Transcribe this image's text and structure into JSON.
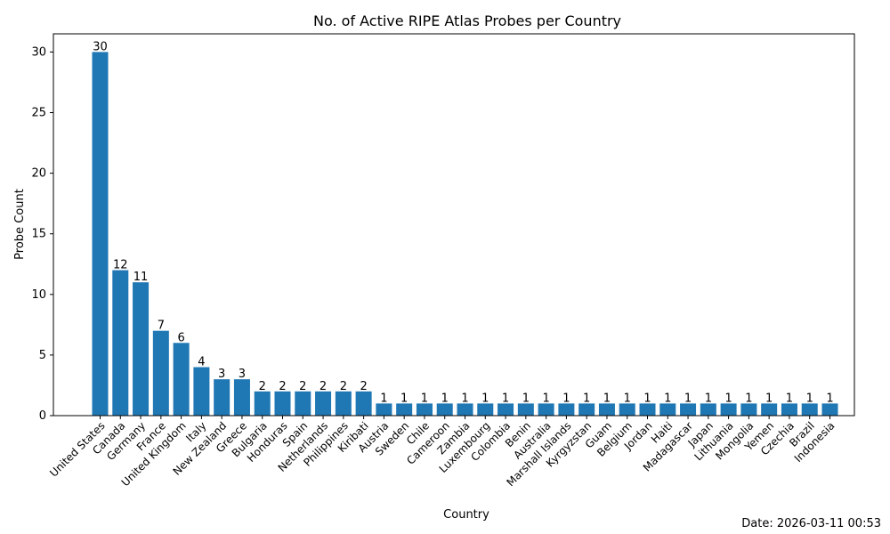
{
  "chart_data": {
    "type": "bar",
    "title": "No. of Active RIPE Atlas Probes per Country",
    "xlabel": "Country",
    "ylabel": "Probe Count",
    "ylim": [
      0,
      31.5
    ],
    "yticks": [
      0,
      5,
      10,
      15,
      20,
      25,
      30
    ],
    "bar_color": "#1f77b4",
    "categories": [
      "United States",
      "Canada",
      "Germany",
      "France",
      "United Kingdom",
      "Italy",
      "New Zealand",
      "Greece",
      "Bulgaria",
      "Honduras",
      "Spain",
      "Netherlands",
      "Philippines",
      "Kiribati",
      "Austria",
      "Sweden",
      "Chile",
      "Cameroon",
      "Zambia",
      "Luxembourg",
      "Colombia",
      "Benin",
      "Australia",
      "Marshall Islands",
      "Kyrgyzstan",
      "Guam",
      "Belgium",
      "Jordan",
      "Haiti",
      "Madagascar",
      "Japan",
      "Lithuania",
      "Mongolia",
      "Yemen",
      "Czechia",
      "Brazil",
      "Indonesia"
    ],
    "values": [
      30,
      12,
      11,
      7,
      6,
      4,
      3,
      3,
      2,
      2,
      2,
      2,
      2,
      2,
      1,
      1,
      1,
      1,
      1,
      1,
      1,
      1,
      1,
      1,
      1,
      1,
      1,
      1,
      1,
      1,
      1,
      1,
      1,
      1,
      1,
      1,
      1
    ]
  },
  "footer": {
    "date_label": "Date: 2026-03-11 00:53"
  }
}
